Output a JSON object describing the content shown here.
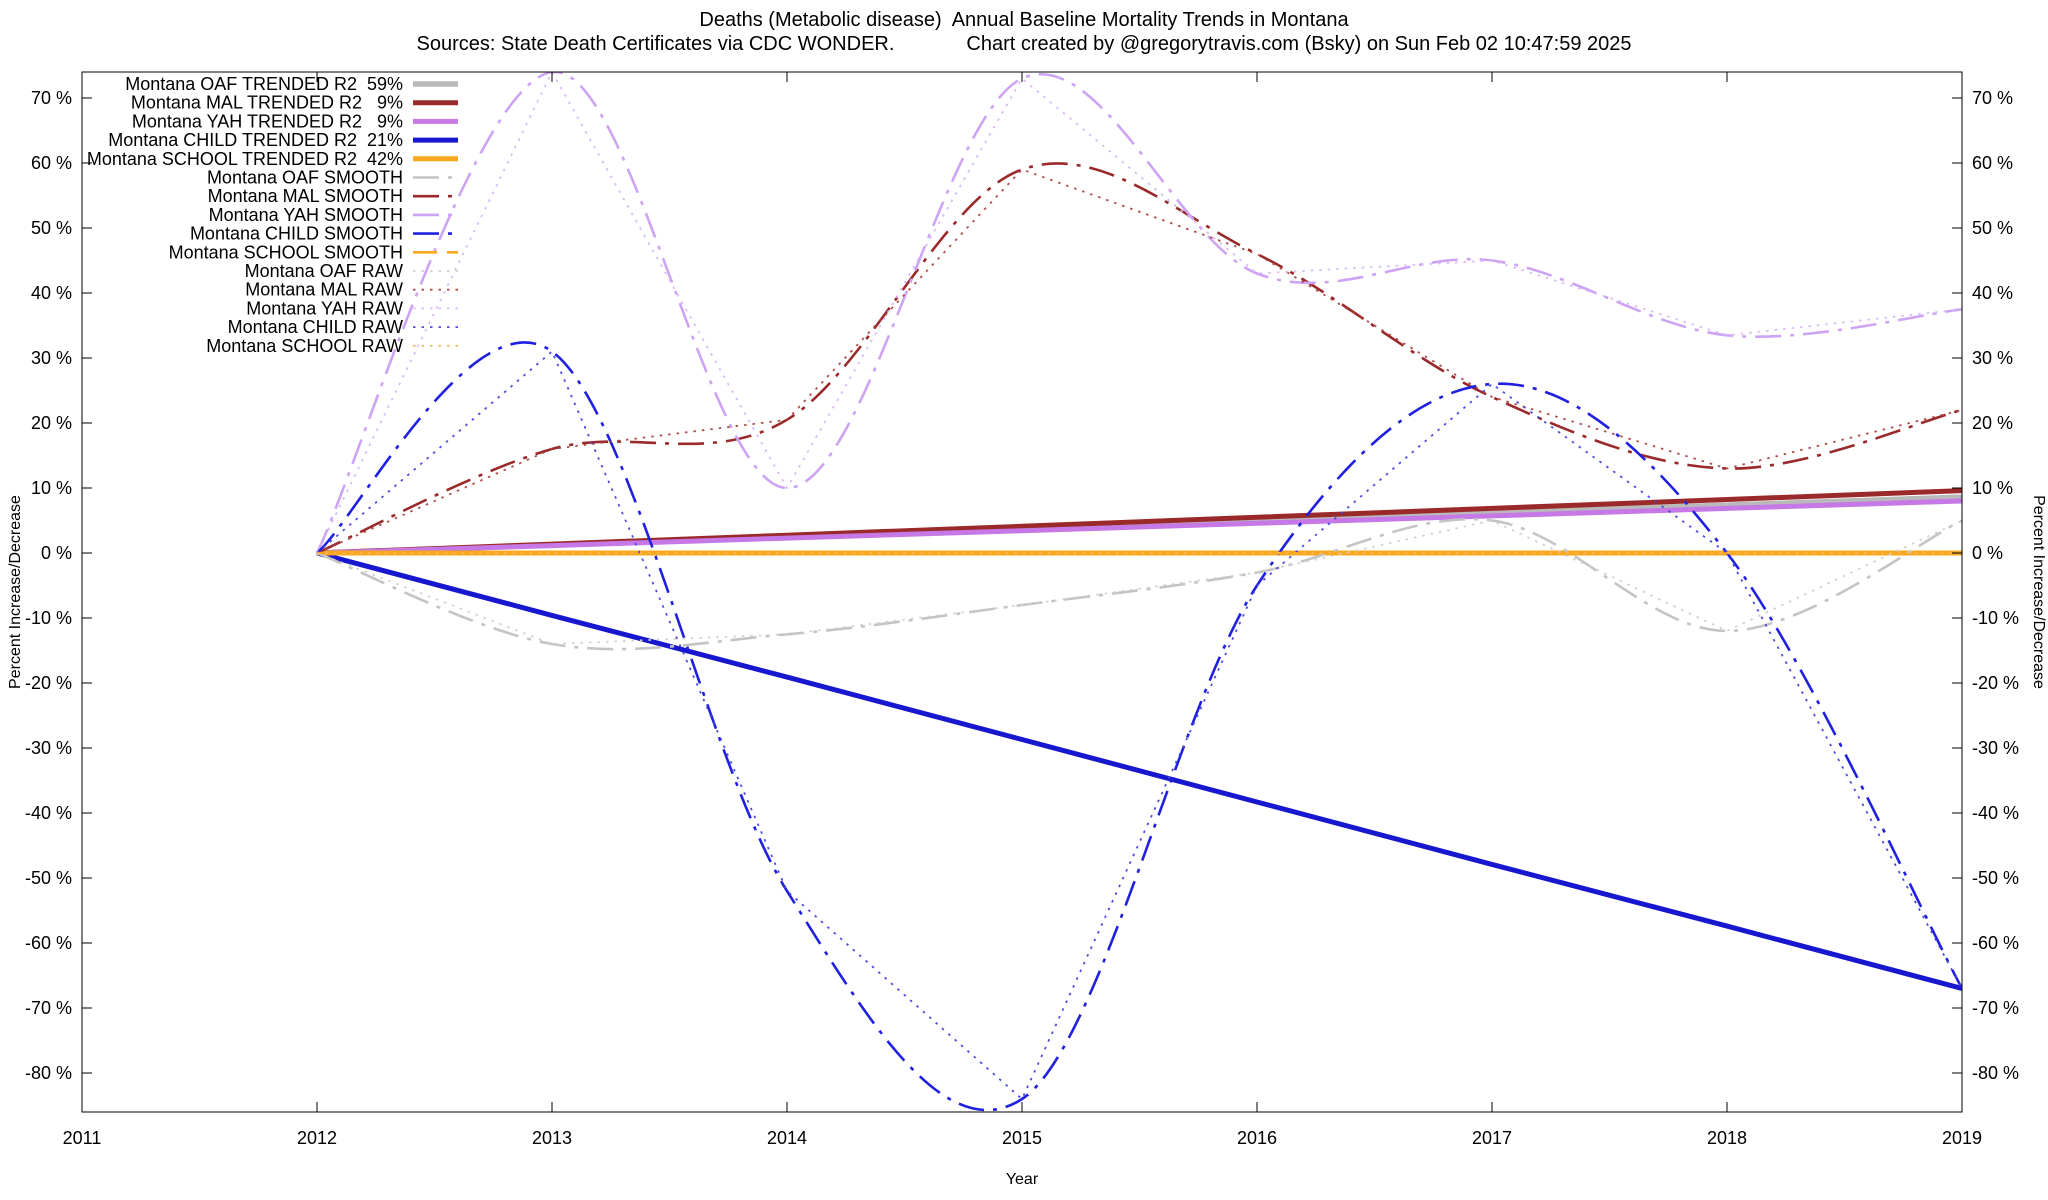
{
  "header": {
    "title": "Deaths (Metabolic disease)  Annual Baseline Mortality Trends in Montana",
    "source": "Sources: State Death Certificates via CDC WONDER.",
    "credit": "Chart created by @gregorytravis.com (Bsky) on Sun Feb 02 10:47:59 2025"
  },
  "chart_data": {
    "type": "line",
    "title": "Deaths (Metabolic disease)  Annual Baseline Mortality Trends in Montana",
    "xlabel": "Year",
    "ylabel_left": "Percent Increase/Decrease",
    "ylabel_right": "Percent Increase/Decrease",
    "xlim": [
      2011,
      2019
    ],
    "ylim": [
      -86,
      74
    ],
    "x_ticks": [
      2011,
      2012,
      2013,
      2014,
      2015,
      2016,
      2017,
      2018,
      2019
    ],
    "y_ticks": [
      70,
      60,
      50,
      40,
      30,
      20,
      10,
      0,
      -10,
      -20,
      -30,
      -40,
      -50,
      -60,
      -70,
      -80
    ],
    "y_tick_suffix": " %",
    "grid": false,
    "legend_position": "top-left",
    "x": [
      2012,
      2013,
      2014,
      2015,
      2016,
      2017,
      2018,
      2019
    ],
    "series": [
      {
        "name": "Montana OAF TRENDED R2  59%",
        "group": "oaf-trended",
        "color": "#b9b9b9",
        "width": 5.5,
        "dash": "solid",
        "curve": false,
        "values": [
          0,
          1.23,
          2.46,
          3.69,
          4.91,
          6.14,
          7.37,
          8.6
        ]
      },
      {
        "name": "Montana MAL TRENDED R2   9%",
        "group": "mal-trended",
        "color": "#9a2a2a",
        "width": 5,
        "dash": "solid",
        "curve": false,
        "values": [
          0,
          1.37,
          2.74,
          4.11,
          5.49,
          6.86,
          8.23,
          9.6
        ]
      },
      {
        "name": "Montana YAH TRENDED R2   9%",
        "group": "yah-trended",
        "color": "#c678e6",
        "width": 5,
        "dash": "solid",
        "curve": false,
        "values": [
          0,
          1.14,
          2.29,
          3.43,
          4.57,
          5.71,
          6.86,
          8.0
        ]
      },
      {
        "name": "Montana CHILD TRENDED R2  21%",
        "group": "child-trended",
        "color": "#1717cf",
        "width": 5,
        "dash": "solid",
        "curve": false,
        "values": [
          0,
          -9.6,
          -19.1,
          -28.7,
          -38.3,
          -47.9,
          -57.4,
          -67
        ]
      },
      {
        "name": "Montana SCHOOL TRENDED R2  42%",
        "group": "school-trended",
        "color": "#f9a71f",
        "width": 5,
        "dash": "solid",
        "curve": false,
        "values": [
          0,
          0,
          0,
          0,
          0,
          0,
          0,
          0
        ]
      },
      {
        "name": "Montana OAF SMOOTH",
        "group": "oaf-smooth",
        "color": "#c4c4c4",
        "width": 2.6,
        "dash": "dashdot",
        "curve": true,
        "values": [
          0,
          -14,
          -12.5,
          -8,
          -3,
          5,
          -12,
          5
        ]
      },
      {
        "name": "Montana MAL SMOOTH",
        "group": "mal-smooth",
        "color": "#9a2a2a",
        "width": 2.6,
        "dash": "dashdot",
        "curve": true,
        "values": [
          0,
          16,
          20.5,
          59,
          46,
          24,
          13,
          22
        ]
      },
      {
        "name": "Montana YAH SMOOTH",
        "group": "yah-smooth",
        "color": "#cda4f4",
        "width": 2.6,
        "dash": "dashdot",
        "curve": true,
        "values": [
          0,
          74,
          10,
          73,
          43,
          45,
          33.5,
          37.5
        ]
      },
      {
        "name": "Montana CHILD SMOOTH",
        "group": "child-smooth",
        "color": "#2020e0",
        "width": 2.6,
        "dash": "dashdot",
        "curve": true,
        "values": [
          0,
          31,
          -52,
          -84,
          -5,
          26,
          0,
          -67
        ]
      },
      {
        "name": "Montana SCHOOL SMOOTH",
        "group": "school-smooth",
        "color": "#f9a71f",
        "width": 2.6,
        "dash": "dashed",
        "curve": false,
        "values": [
          0,
          0,
          0,
          0,
          0,
          0,
          0,
          0
        ]
      },
      {
        "name": "Montana OAF RAW",
        "group": "oaf-raw",
        "color": "#cfcfcf",
        "width": 1.8,
        "dash": "dotted",
        "curve": false,
        "opacity": 0.95,
        "values": [
          0,
          -14,
          -12.5,
          -8,
          -3,
          5,
          -12,
          5
        ]
      },
      {
        "name": "Montana MAL RAW",
        "group": "mal-raw",
        "color": "#aa4444",
        "width": 1.8,
        "dash": "dotted",
        "curve": false,
        "opacity": 0.95,
        "values": [
          0,
          16,
          20.5,
          59,
          46,
          24,
          13,
          22
        ]
      },
      {
        "name": "Montana YAH RAW",
        "group": "yah-raw",
        "color": "#d8b5f8",
        "width": 1.8,
        "dash": "dotted",
        "curve": false,
        "opacity": 0.95,
        "values": [
          0,
          74,
          10,
          73,
          43,
          45,
          33.5,
          37.5
        ]
      },
      {
        "name": "Montana CHILD RAW",
        "group": "child-raw",
        "color": "#4444dd",
        "width": 1.8,
        "dash": "dotted",
        "curve": false,
        "opacity": 0.95,
        "values": [
          0,
          31,
          -52,
          -84,
          -5,
          26,
          0,
          -67
        ]
      },
      {
        "name": "Montana SCHOOL RAW",
        "group": "school-raw",
        "color": "#f9b84f",
        "width": 1.8,
        "dash": "dotted",
        "curve": false,
        "opacity": 0.95,
        "values": [
          0,
          0,
          0,
          0,
          0,
          0,
          0,
          0
        ]
      }
    ]
  }
}
